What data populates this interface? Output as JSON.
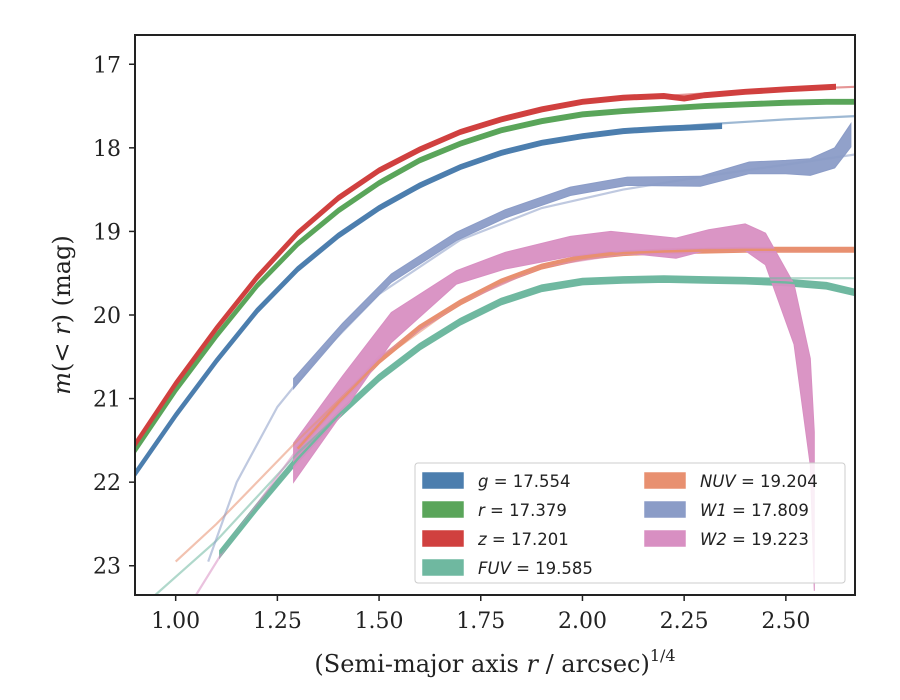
{
  "chart_data": {
    "type": "line",
    "xlabel_parts": [
      "(Semi-major axis ",
      "r",
      " / arcsec)",
      "1/4"
    ],
    "ylabel_parts": [
      "m",
      "(< ",
      "r",
      ") (mag)"
    ],
    "xlim": [
      0.9,
      2.67
    ],
    "ylim": [
      23.35,
      16.65
    ],
    "y_inverted": true,
    "x_ticks": [
      1.0,
      1.25,
      1.5,
      1.75,
      2.0,
      2.25,
      2.5
    ],
    "x_tick_labels": [
      "1.00",
      "1.25",
      "1.50",
      "1.75",
      "2.00",
      "2.25",
      "2.50"
    ],
    "y_ticks": [
      17,
      18,
      19,
      20,
      21,
      22,
      23
    ],
    "y_tick_labels": [
      "17",
      "18",
      "19",
      "20",
      "21",
      "22",
      "23"
    ],
    "legend_position": "lower-right",
    "series": [
      {
        "name": "g = 17.554",
        "name_var": "g",
        "name_val": "17.554",
        "color": "#4c7eae",
        "band": 0.02,
        "data": [
          [
            0.9,
            21.9
          ],
          [
            1.0,
            21.2
          ],
          [
            1.1,
            20.55
          ],
          [
            1.2,
            19.95
          ],
          [
            1.3,
            19.45
          ],
          [
            1.4,
            19.05
          ],
          [
            1.5,
            18.72
          ],
          [
            1.6,
            18.45
          ],
          [
            1.7,
            18.23
          ],
          [
            1.8,
            18.06
          ],
          [
            1.9,
            17.94
          ],
          [
            2.0,
            17.86
          ],
          [
            2.1,
            17.8
          ],
          [
            2.2,
            17.77
          ],
          [
            2.3,
            17.75
          ],
          [
            2.34,
            17.74
          ]
        ],
        "model": [
          [
            1.5,
            18.72
          ],
          [
            1.7,
            18.23
          ],
          [
            1.9,
            17.94
          ],
          [
            2.1,
            17.8
          ],
          [
            2.3,
            17.72
          ],
          [
            2.5,
            17.66
          ],
          [
            2.67,
            17.62
          ]
        ]
      },
      {
        "name": "r = 17.379",
        "name_var": "r",
        "name_val": "17.379",
        "color": "#5aa55a",
        "band": 0.02,
        "data": [
          [
            0.9,
            21.62
          ],
          [
            1.0,
            20.9
          ],
          [
            1.1,
            20.25
          ],
          [
            1.2,
            19.65
          ],
          [
            1.3,
            19.15
          ],
          [
            1.4,
            18.75
          ],
          [
            1.5,
            18.42
          ],
          [
            1.6,
            18.15
          ],
          [
            1.7,
            17.95
          ],
          [
            1.8,
            17.79
          ],
          [
            1.9,
            17.68
          ],
          [
            2.0,
            17.6
          ],
          [
            2.1,
            17.56
          ],
          [
            2.2,
            17.53
          ],
          [
            2.3,
            17.5
          ],
          [
            2.4,
            17.48
          ],
          [
            2.5,
            17.46
          ],
          [
            2.6,
            17.45
          ],
          [
            2.67,
            17.45
          ]
        ],
        "model": [
          [
            1.8,
            17.79
          ],
          [
            2.0,
            17.6
          ],
          [
            2.2,
            17.52
          ],
          [
            2.4,
            17.47
          ],
          [
            2.67,
            17.43
          ]
        ]
      },
      {
        "name": "z = 17.201",
        "name_var": "z",
        "name_val": "17.201",
        "color": "#d0403f",
        "band": 0.02,
        "data": [
          [
            0.9,
            21.55
          ],
          [
            1.0,
            20.82
          ],
          [
            1.1,
            20.16
          ],
          [
            1.2,
            19.55
          ],
          [
            1.3,
            19.02
          ],
          [
            1.4,
            18.6
          ],
          [
            1.5,
            18.27
          ],
          [
            1.6,
            18.02
          ],
          [
            1.7,
            17.81
          ],
          [
            1.8,
            17.66
          ],
          [
            1.9,
            17.54
          ],
          [
            2.0,
            17.45
          ],
          [
            2.1,
            17.4
          ],
          [
            2.2,
            17.38
          ],
          [
            2.25,
            17.41
          ],
          [
            2.3,
            17.37
          ],
          [
            2.4,
            17.33
          ],
          [
            2.5,
            17.3
          ],
          [
            2.62,
            17.27
          ]
        ],
        "model": [
          [
            2.0,
            17.45
          ],
          [
            2.2,
            17.38
          ],
          [
            2.4,
            17.32
          ],
          [
            2.67,
            17.27
          ]
        ]
      },
      {
        "name": "FUV = 19.585",
        "name_var": "FUV",
        "name_val": "19.585",
        "color": "#6fb8a0",
        "band": 0.03,
        "data": [
          [
            1.11,
            22.85
          ],
          [
            1.2,
            22.3
          ],
          [
            1.3,
            21.72
          ],
          [
            1.4,
            21.2
          ],
          [
            1.5,
            20.75
          ],
          [
            1.6,
            20.38
          ],
          [
            1.7,
            20.08
          ],
          [
            1.8,
            19.84
          ],
          [
            1.9,
            19.68
          ],
          [
            2.0,
            19.6
          ],
          [
            2.1,
            19.58
          ],
          [
            2.2,
            19.57
          ],
          [
            2.3,
            19.58
          ],
          [
            2.4,
            19.59
          ],
          [
            2.5,
            19.61
          ],
          [
            2.6,
            19.65
          ],
          [
            2.67,
            19.73
          ]
        ],
        "model": [
          [
            0.95,
            23.35
          ],
          [
            1.1,
            22.7
          ],
          [
            1.3,
            21.65
          ],
          [
            1.5,
            20.75
          ],
          [
            1.7,
            20.05
          ],
          [
            1.9,
            19.68
          ],
          [
            2.1,
            19.58
          ],
          [
            2.3,
            19.56
          ],
          [
            2.67,
            19.56
          ]
        ]
      },
      {
        "name": "NUV = 19.204",
        "name_var": "NUV",
        "name_val": "19.204",
        "color": "#e89070",
        "band": 0.02,
        "data": [
          [
            1.3,
            21.6
          ],
          [
            1.4,
            21.05
          ],
          [
            1.5,
            20.55
          ],
          [
            1.6,
            20.15
          ],
          [
            1.7,
            19.85
          ],
          [
            1.8,
            19.6
          ],
          [
            1.9,
            19.42
          ],
          [
            2.0,
            19.31
          ],
          [
            2.1,
            19.26
          ],
          [
            2.2,
            19.24
          ],
          [
            2.3,
            19.23
          ],
          [
            2.4,
            19.22
          ],
          [
            2.5,
            19.22
          ],
          [
            2.6,
            19.22
          ],
          [
            2.67,
            19.22
          ]
        ],
        "model": [
          [
            1.0,
            22.95
          ],
          [
            1.1,
            22.5
          ],
          [
            1.3,
            21.5
          ],
          [
            1.5,
            20.55
          ],
          [
            1.7,
            19.85
          ],
          [
            1.9,
            19.42
          ],
          [
            2.1,
            19.26
          ],
          [
            2.3,
            19.22
          ],
          [
            2.67,
            19.22
          ]
        ]
      },
      {
        "name": "W1 = 17.809",
        "name_var": "W1",
        "name_val": "17.809",
        "color": "#8b9cc7",
        "band_lo": [
          0.06,
          0.05,
          0.05,
          0.05,
          0.05,
          0.05,
          0.05,
          0.06,
          0.07,
          0.08,
          0.1,
          0.12,
          0.14
        ],
        "band_hi": [
          0.06,
          0.05,
          0.05,
          0.05,
          0.05,
          0.05,
          0.05,
          0.06,
          0.07,
          0.08,
          0.1,
          0.12,
          0.14
        ],
        "data": [
          [
            1.29,
            20.82
          ],
          [
            1.41,
            20.15
          ],
          [
            1.53,
            19.56
          ],
          [
            1.69,
            19.06
          ],
          [
            1.81,
            18.79
          ],
          [
            1.97,
            18.52
          ],
          [
            2.11,
            18.4
          ],
          [
            2.29,
            18.4
          ],
          [
            2.41,
            18.24
          ],
          [
            2.5,
            18.23
          ],
          [
            2.56,
            18.23
          ],
          [
            2.62,
            18.12
          ],
          [
            2.66,
            17.85
          ]
        ],
        "model": [
          [
            1.08,
            22.95
          ],
          [
            1.15,
            22.0
          ],
          [
            1.25,
            21.1
          ],
          [
            1.35,
            20.5
          ],
          [
            1.5,
            19.75
          ],
          [
            1.7,
            19.1
          ],
          [
            1.9,
            18.72
          ],
          [
            2.1,
            18.5
          ],
          [
            2.3,
            18.34
          ],
          [
            2.5,
            18.2
          ],
          [
            2.67,
            18.08
          ]
        ]
      },
      {
        "name": "W2 = 19.223",
        "name_var": "W2",
        "name_val": "19.223",
        "color": "#d88fc2",
        "data": [
          [
            1.29,
            21.75
          ],
          [
            1.41,
            20.95
          ],
          [
            1.53,
            20.15
          ],
          [
            1.69,
            19.55
          ],
          [
            1.81,
            19.35
          ],
          [
            1.97,
            19.18
          ],
          [
            2.07,
            19.12
          ],
          [
            2.23,
            19.2
          ],
          [
            2.31,
            19.1
          ],
          [
            2.4,
            19.07
          ],
          [
            2.45,
            19.2
          ],
          [
            2.52,
            19.75
          ],
          [
            2.56,
            20.8
          ],
          [
            2.57,
            21.8
          ]
        ],
        "band_lo": [
          0.25,
          0.22,
          0.18,
          0.08,
          0.1,
          0.12,
          0.12,
          0.12,
          0.12,
          0.16,
          0.2,
          0.6,
          1.0,
          1.5
        ],
        "band_hi": [
          0.22,
          0.22,
          0.18,
          0.08,
          0.1,
          0.12,
          0.12,
          0.12,
          0.12,
          0.16,
          0.18,
          0.12,
          0.28,
          0.4
        ],
        "model": [
          [
            1.05,
            23.35
          ],
          [
            1.12,
            22.8
          ],
          [
            1.3,
            21.6
          ],
          [
            1.5,
            20.5
          ],
          [
            1.7,
            19.85
          ],
          [
            1.9,
            19.42
          ],
          [
            2.1,
            19.27
          ],
          [
            2.3,
            19.23
          ],
          [
            2.67,
            19.22
          ]
        ]
      }
    ]
  }
}
